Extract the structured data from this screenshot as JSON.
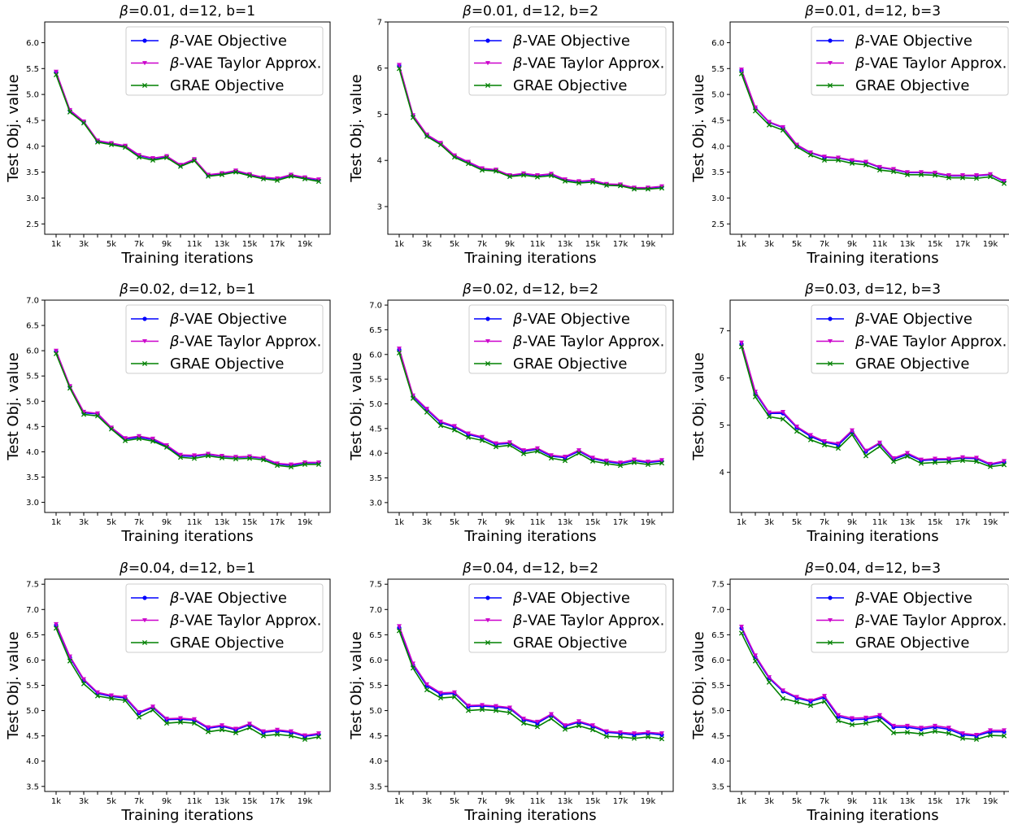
{
  "chart_data": [
    {
      "type": "line",
      "title": "β=0.01, d=12, b=1",
      "xlabel": "Training iterations",
      "ylabel": "Test Obj. value",
      "ylim": [
        2.3,
        6.4
      ],
      "yticks": [
        2.5,
        3.0,
        3.5,
        4.0,
        4.5,
        5.0,
        5.5,
        6.0
      ],
      "ytick_labels": [
        "2.5",
        "3.0",
        "3.5",
        "4.0",
        "4.5",
        "5.0",
        "5.5",
        "6.0"
      ],
      "legend_position": "top-right",
      "series": [
        {
          "name": "β-VAE Objective",
          "color": "#0000ff",
          "marker": "circle",
          "values": [
            5.43,
            4.69,
            4.47,
            4.1,
            4.05,
            4.0,
            3.82,
            3.76,
            3.8,
            3.63,
            3.74,
            3.44,
            3.47,
            3.52,
            3.45,
            3.39,
            3.37,
            3.44,
            3.39,
            3.35
          ]
        },
        {
          "name": "β-VAE Taylor Approx.",
          "color": "#cc00cc",
          "marker": "triangle",
          "values": [
            5.44,
            4.7,
            4.48,
            4.11,
            4.06,
            4.01,
            3.83,
            3.77,
            3.81,
            3.64,
            3.75,
            3.45,
            3.48,
            3.53,
            3.46,
            3.4,
            3.38,
            3.45,
            3.4,
            3.36
          ]
        },
        {
          "name": "GRAE Objective",
          "color": "#008000",
          "marker": "x",
          "values": [
            5.38,
            4.66,
            4.45,
            4.08,
            4.03,
            3.98,
            3.79,
            3.73,
            3.78,
            3.61,
            3.72,
            3.42,
            3.45,
            3.5,
            3.43,
            3.37,
            3.34,
            3.42,
            3.37,
            3.32
          ]
        }
      ]
    },
    {
      "type": "line",
      "title": "β=0.01, d=12, b=2",
      "xlabel": "Training iterations",
      "ylabel": "Test Obj. value",
      "ylim": [
        2.4,
        7.0
      ],
      "yticks": [
        3,
        4,
        5,
        6,
        7
      ],
      "ytick_labels": [
        "3",
        "4",
        "5",
        "6",
        "7"
      ],
      "legend_position": "top-right",
      "series": [
        {
          "name": "β-VAE Objective",
          "color": "#0000ff",
          "marker": "circle",
          "values": [
            6.06,
            4.97,
            4.55,
            4.37,
            4.1,
            3.96,
            3.82,
            3.79,
            3.67,
            3.71,
            3.67,
            3.7,
            3.58,
            3.54,
            3.56,
            3.48,
            3.47,
            3.4,
            3.4,
            3.43
          ]
        },
        {
          "name": "β-VAE Taylor Approx.",
          "color": "#cc00cc",
          "marker": "triangle",
          "values": [
            6.07,
            4.98,
            4.56,
            4.38,
            4.11,
            3.97,
            3.83,
            3.8,
            3.68,
            3.72,
            3.68,
            3.71,
            3.59,
            3.55,
            3.57,
            3.49,
            3.48,
            3.41,
            3.41,
            3.44
          ]
        },
        {
          "name": "GRAE Objective",
          "color": "#008000",
          "marker": "x",
          "values": [
            5.99,
            4.93,
            4.52,
            4.34,
            4.07,
            3.93,
            3.79,
            3.77,
            3.65,
            3.68,
            3.64,
            3.67,
            3.55,
            3.51,
            3.53,
            3.46,
            3.45,
            3.38,
            3.38,
            3.4
          ]
        }
      ]
    },
    {
      "type": "line",
      "title": "β=0.01, d=12, b=3",
      "xlabel": "Training iterations",
      "ylabel": "Test Obj. value",
      "ylim": [
        2.3,
        6.4
      ],
      "yticks": [
        2.5,
        3.0,
        3.5,
        4.0,
        4.5,
        5.0,
        5.5,
        6.0
      ],
      "ytick_labels": [
        "2.5",
        "3.0",
        "3.5",
        "4.0",
        "4.5",
        "5.0",
        "5.5",
        "6.0"
      ],
      "legend_position": "top-right",
      "series": [
        {
          "name": "β-VAE Objective",
          "color": "#0000ff",
          "marker": "circle",
          "values": [
            5.47,
            4.74,
            4.46,
            4.36,
            4.02,
            3.87,
            3.79,
            3.77,
            3.72,
            3.69,
            3.59,
            3.55,
            3.49,
            3.49,
            3.48,
            3.43,
            3.43,
            3.43,
            3.45,
            3.32
          ]
        },
        {
          "name": "β-VAE Taylor Approx.",
          "color": "#cc00cc",
          "marker": "triangle",
          "values": [
            5.48,
            4.75,
            4.47,
            4.37,
            4.03,
            3.88,
            3.8,
            3.78,
            3.73,
            3.7,
            3.6,
            3.56,
            3.5,
            3.5,
            3.49,
            3.44,
            3.44,
            3.44,
            3.46,
            3.33
          ]
        },
        {
          "name": "GRAE Objective",
          "color": "#008000",
          "marker": "x",
          "values": [
            5.4,
            4.68,
            4.41,
            4.31,
            3.99,
            3.83,
            3.73,
            3.73,
            3.67,
            3.64,
            3.54,
            3.51,
            3.45,
            3.45,
            3.44,
            3.39,
            3.39,
            3.38,
            3.41,
            3.28
          ]
        }
      ]
    },
    {
      "type": "line",
      "title": "β=0.02, d=12, b=1",
      "xlabel": "Training iterations",
      "ylabel": "Test Obj. value",
      "ylim": [
        2.8,
        7.0
      ],
      "yticks": [
        3.0,
        3.5,
        4.0,
        4.5,
        5.0,
        5.5,
        6.0,
        6.5,
        7.0
      ],
      "ytick_labels": [
        "3.0",
        "3.5",
        "4.0",
        "4.5",
        "5.0",
        "5.5",
        "6.0",
        "6.5",
        "7.0"
      ],
      "legend_position": "top-right",
      "series": [
        {
          "name": "β-VAE Objective",
          "color": "#0000ff",
          "marker": "circle",
          "values": [
            5.99,
            5.29,
            4.77,
            4.75,
            4.47,
            4.25,
            4.29,
            4.24,
            4.11,
            3.92,
            3.91,
            3.95,
            3.91,
            3.89,
            3.9,
            3.87,
            3.76,
            3.73,
            3.78,
            3.78
          ]
        },
        {
          "name": "β-VAE Taylor Approx.",
          "color": "#cc00cc",
          "marker": "triangle",
          "values": [
            6.0,
            5.3,
            4.79,
            4.76,
            4.48,
            4.27,
            4.31,
            4.26,
            4.13,
            3.94,
            3.93,
            3.96,
            3.92,
            3.9,
            3.91,
            3.88,
            3.77,
            3.75,
            3.79,
            3.79
          ]
        },
        {
          "name": "GRAE Objective",
          "color": "#008000",
          "marker": "x",
          "values": [
            5.94,
            5.26,
            4.74,
            4.71,
            4.45,
            4.22,
            4.26,
            4.21,
            4.09,
            3.89,
            3.87,
            3.92,
            3.88,
            3.86,
            3.87,
            3.84,
            3.73,
            3.7,
            3.75,
            3.75
          ]
        }
      ]
    },
    {
      "type": "line",
      "title": "β=0.02, d=12, b=2",
      "xlabel": "Training iterations",
      "ylabel": "Test Obj. value",
      "ylim": [
        2.8,
        7.1
      ],
      "yticks": [
        3.0,
        3.5,
        4.0,
        4.5,
        5.0,
        5.5,
        6.0,
        6.5,
        7.0
      ],
      "ytick_labels": [
        "3.0",
        "3.5",
        "4.0",
        "4.5",
        "5.0",
        "5.5",
        "6.0",
        "6.5",
        "7.0"
      ],
      "legend_position": "top-right",
      "series": [
        {
          "name": "β-VAE Objective",
          "color": "#0000ff",
          "marker": "circle",
          "values": [
            6.1,
            5.15,
            4.88,
            4.62,
            4.53,
            4.38,
            4.31,
            4.18,
            4.2,
            4.04,
            4.08,
            3.94,
            3.91,
            4.04,
            3.89,
            3.83,
            3.79,
            3.85,
            3.81,
            3.84
          ]
        },
        {
          "name": "β-VAE Taylor Approx.",
          "color": "#cc00cc",
          "marker": "triangle",
          "values": [
            6.12,
            5.17,
            4.9,
            4.64,
            4.55,
            4.4,
            4.33,
            4.2,
            4.22,
            4.06,
            4.1,
            3.96,
            3.93,
            4.06,
            3.91,
            3.85,
            3.81,
            3.87,
            3.83,
            3.86
          ]
        },
        {
          "name": "GRAE Objective",
          "color": "#008000",
          "marker": "x",
          "values": [
            6.03,
            5.11,
            4.83,
            4.56,
            4.47,
            4.32,
            4.26,
            4.13,
            4.16,
            3.99,
            4.04,
            3.9,
            3.85,
            4.0,
            3.84,
            3.79,
            3.75,
            3.81,
            3.77,
            3.8
          ]
        }
      ]
    },
    {
      "type": "line",
      "title": "β=0.03, d=12, b=3",
      "xlabel": "Training iterations",
      "ylabel": "Test Obj. value",
      "ylim": [
        3.15,
        7.65
      ],
      "yticks": [
        4,
        5,
        6,
        7
      ],
      "ytick_labels": [
        "4",
        "5",
        "6",
        "7"
      ],
      "legend_position": "top-right",
      "series": [
        {
          "name": "β-VAE Objective",
          "color": "#0000ff",
          "marker": "circle",
          "values": [
            6.72,
            5.68,
            5.25,
            5.25,
            4.95,
            4.76,
            4.64,
            4.58,
            4.86,
            4.44,
            4.61,
            4.28,
            4.38,
            4.25,
            4.27,
            4.27,
            4.3,
            4.29,
            4.16,
            4.22
          ]
        },
        {
          "name": "β-VAE Taylor Approx.",
          "color": "#cc00cc",
          "marker": "triangle",
          "values": [
            6.75,
            5.71,
            5.27,
            5.28,
            4.97,
            4.79,
            4.66,
            4.61,
            4.89,
            4.46,
            4.63,
            4.3,
            4.41,
            4.27,
            4.29,
            4.29,
            4.32,
            4.31,
            4.18,
            4.24
          ]
        },
        {
          "name": "GRAE Objective",
          "color": "#008000",
          "marker": "x",
          "values": [
            6.66,
            5.6,
            5.18,
            5.13,
            4.87,
            4.69,
            4.58,
            4.51,
            4.8,
            4.35,
            4.55,
            4.23,
            4.34,
            4.19,
            4.21,
            4.22,
            4.25,
            4.23,
            4.12,
            4.16
          ]
        }
      ]
    },
    {
      "type": "line",
      "title": "β=0.04, d=12, b=1",
      "xlabel": "Training iterations",
      "ylabel": "Test Obj. value",
      "ylim": [
        3.4,
        7.6
      ],
      "yticks": [
        3.5,
        4.0,
        4.5,
        5.0,
        5.5,
        6.0,
        6.5,
        7.0,
        7.5
      ],
      "ytick_labels": [
        "3.5",
        "4.0",
        "4.5",
        "5.0",
        "5.5",
        "6.0",
        "6.5",
        "7.0",
        "7.5"
      ],
      "legend_position": "top-right",
      "series": [
        {
          "name": "β-VAE Objective",
          "color": "#0000ff",
          "marker": "circle",
          "values": [
            6.69,
            6.05,
            5.6,
            5.34,
            5.28,
            5.25,
            4.95,
            5.06,
            4.82,
            4.83,
            4.81,
            4.65,
            4.69,
            4.62,
            4.72,
            4.57,
            4.6,
            4.57,
            4.49,
            4.53
          ]
        },
        {
          "name": "β-VAE Taylor Approx.",
          "color": "#cc00cc",
          "marker": "triangle",
          "values": [
            6.71,
            6.07,
            5.62,
            5.36,
            5.3,
            5.27,
            4.97,
            5.08,
            4.84,
            4.85,
            4.83,
            4.67,
            4.71,
            4.64,
            4.74,
            4.59,
            4.62,
            4.59,
            4.51,
            4.55
          ]
        },
        {
          "name": "GRAE Objective",
          "color": "#008000",
          "marker": "x",
          "values": [
            6.63,
            5.98,
            5.53,
            5.29,
            5.24,
            5.2,
            4.87,
            5.01,
            4.75,
            4.77,
            4.75,
            4.58,
            4.62,
            4.56,
            4.66,
            4.5,
            4.53,
            4.5,
            4.43,
            4.48
          ]
        }
      ]
    },
    {
      "type": "line",
      "title": "β=0.04, d=12, b=2",
      "xlabel": "Training iterations",
      "ylabel": "Test Obj. value",
      "ylim": [
        3.4,
        7.6
      ],
      "yticks": [
        3.5,
        4.0,
        4.5,
        5.0,
        5.5,
        6.0,
        6.5,
        7.0,
        7.5
      ],
      "ytick_labels": [
        "3.5",
        "4.0",
        "4.5",
        "5.0",
        "5.5",
        "6.0",
        "6.5",
        "7.0",
        "7.5"
      ],
      "legend_position": "top-right",
      "series": [
        {
          "name": "β-VAE Objective",
          "color": "#0000ff",
          "marker": "circle",
          "values": [
            6.64,
            5.9,
            5.49,
            5.32,
            5.34,
            5.08,
            5.09,
            5.07,
            5.04,
            4.82,
            4.75,
            4.91,
            4.69,
            4.77,
            4.69,
            4.57,
            4.55,
            4.52,
            4.55,
            4.52
          ]
        },
        {
          "name": "β-VAE Taylor Approx.",
          "color": "#cc00cc",
          "marker": "triangle",
          "values": [
            6.67,
            5.93,
            5.52,
            5.35,
            5.36,
            5.1,
            5.11,
            5.09,
            5.06,
            4.84,
            4.78,
            4.93,
            4.71,
            4.79,
            4.71,
            4.59,
            4.57,
            4.55,
            4.57,
            4.55
          ]
        },
        {
          "name": "GRAE Objective",
          "color": "#008000",
          "marker": "x",
          "values": [
            6.58,
            5.84,
            5.41,
            5.25,
            5.27,
            5.0,
            5.02,
            5.0,
            4.96,
            4.75,
            4.68,
            4.84,
            4.63,
            4.7,
            4.62,
            4.49,
            4.48,
            4.45,
            4.48,
            4.44
          ]
        }
      ]
    },
    {
      "type": "line",
      "title": "β=0.04, d=12, b=3",
      "xlabel": "Training iterations",
      "ylabel": "Test Obj. value",
      "ylim": [
        3.4,
        7.6
      ],
      "yticks": [
        3.5,
        4.0,
        4.5,
        5.0,
        5.5,
        6.0,
        6.5,
        7.0,
        7.5
      ],
      "ytick_labels": [
        "3.5",
        "4.0",
        "4.5",
        "5.0",
        "5.5",
        "6.0",
        "6.5",
        "7.0",
        "7.5"
      ],
      "legend_position": "top-right",
      "series": [
        {
          "name": "β-VAE Objective",
          "color": "#0000ff",
          "marker": "circle",
          "values": [
            6.63,
            6.06,
            5.64,
            5.38,
            5.25,
            5.18,
            5.26,
            4.88,
            4.82,
            4.83,
            4.88,
            4.67,
            4.67,
            4.63,
            4.67,
            4.63,
            4.52,
            4.5,
            4.58,
            4.58
          ]
        },
        {
          "name": "β-VAE Taylor Approx.",
          "color": "#cc00cc",
          "marker": "triangle",
          "values": [
            6.66,
            6.09,
            5.66,
            5.4,
            5.27,
            5.2,
            5.29,
            4.91,
            4.85,
            4.86,
            4.91,
            4.7,
            4.7,
            4.66,
            4.7,
            4.66,
            4.55,
            4.52,
            4.61,
            4.61
          ]
        },
        {
          "name": "GRAE Objective",
          "color": "#008000",
          "marker": "x",
          "values": [
            6.53,
            5.98,
            5.56,
            5.24,
            5.17,
            5.1,
            5.18,
            4.8,
            4.72,
            4.75,
            4.81,
            4.56,
            4.57,
            4.54,
            4.59,
            4.55,
            4.45,
            4.43,
            4.51,
            4.5
          ]
        }
      ]
    }
  ],
  "x_tick_labels": [
    "1k",
    "3k",
    "5k",
    "7k",
    "9k",
    "11k",
    "13k",
    "15k",
    "17k",
    "19k"
  ],
  "x_points": 20
}
